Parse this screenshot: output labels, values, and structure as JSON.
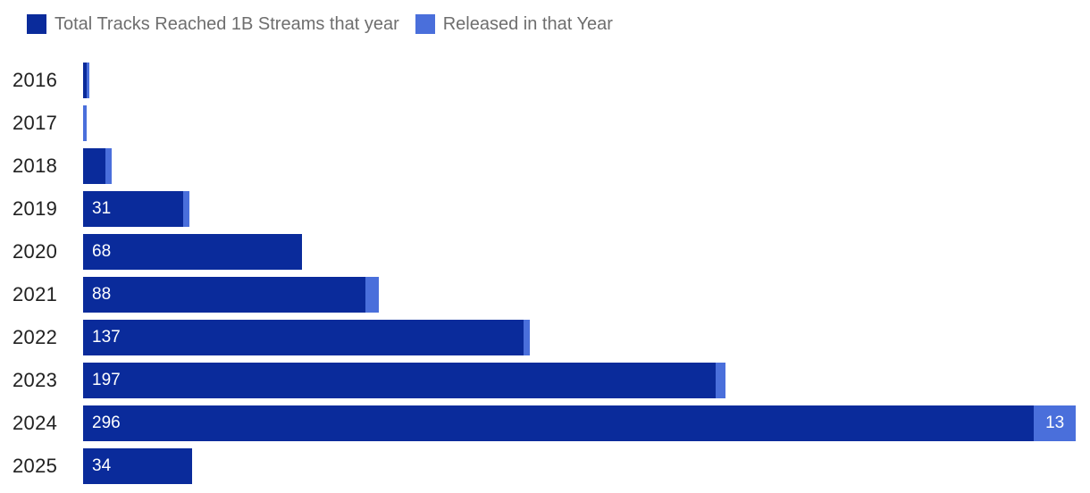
{
  "legend": {
    "items": [
      {
        "label": "Total Tracks Reached 1B Streams that year",
        "color": "#0a2b9b"
      },
      {
        "label": "Released in that Year",
        "color": "#4a6fdb"
      }
    ]
  },
  "chart_data": {
    "type": "bar",
    "orientation": "horizontal",
    "stacked": true,
    "grid": false,
    "legend_position": "top-left",
    "categories": [
      "2016",
      "2017",
      "2018",
      "2019",
      "2020",
      "2021",
      "2022",
      "2023",
      "2024",
      "2025"
    ],
    "series": [
      {
        "name": "Total Tracks Reached 1B Streams that year",
        "color": "#0a2b9b",
        "label_color": "#ffffff",
        "values": [
          1,
          0,
          7,
          31,
          68,
          88,
          137,
          197,
          296,
          34
        ]
      },
      {
        "name": "Released in that Year",
        "color": "#4a6fdb",
        "label_color": "#ffffff",
        "values": [
          1,
          1,
          2,
          2,
          0,
          4,
          2,
          3,
          13,
          0
        ]
      }
    ],
    "visible_value_labels": {
      "Total Tracks Reached 1B Streams that year": [
        "31",
        "68",
        "88",
        "137",
        "197",
        "296",
        "34"
      ],
      "Released in that Year": [
        "13"
      ]
    },
    "xlim": [
      0,
      309
    ],
    "title": "",
    "xlabel": "",
    "ylabel": ""
  }
}
